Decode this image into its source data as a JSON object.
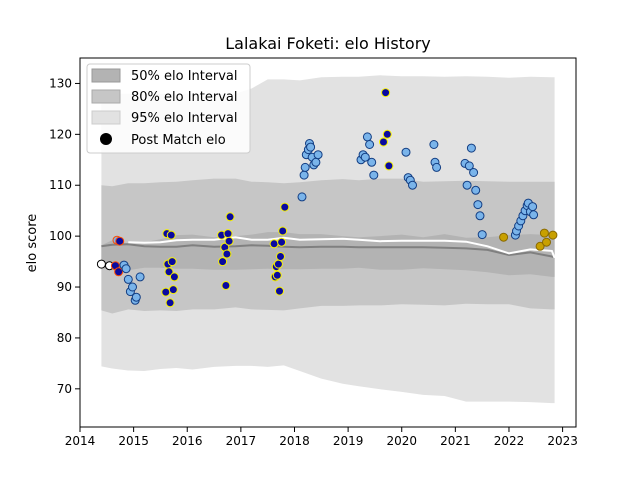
{
  "chart_data": {
    "type": "scatter",
    "title": "Lalakai Foketi: elo History",
    "ylabel": "elo score",
    "xlabel": "",
    "xlim": [
      2014.0,
      2023.25
    ],
    "ylim": [
      62.5,
      135
    ],
    "x_ticks": [
      2014,
      2015,
      2016,
      2017,
      2018,
      2019,
      2020,
      2021,
      2022,
      2023
    ],
    "y_ticks": [
      70,
      80,
      90,
      100,
      110,
      120,
      130
    ],
    "grid": false,
    "legend_position": "top-left",
    "legend": [
      {
        "label": "50% elo Interval",
        "kind": "band",
        "color": "#b3b3b3"
      },
      {
        "label": "80% elo Interval",
        "kind": "band",
        "color": "#c6c6c6"
      },
      {
        "label": "95% elo Interval",
        "kind": "band",
        "color": "#e2e2e2"
      },
      {
        "label": "Post Match elo",
        "kind": "marker",
        "color": "#000000"
      }
    ],
    "x": [
      2014.4,
      2014.6,
      2014.9,
      2015.2,
      2015.5,
      2015.8,
      2016.1,
      2016.5,
      2016.9,
      2017.2,
      2017.5,
      2017.8,
      2018.1,
      2018.5,
      2018.9,
      2019.2,
      2019.6,
      2020.0,
      2020.4,
      2020.8,
      2021.2,
      2021.6,
      2022.0,
      2022.4,
      2022.8,
      2022.85
    ],
    "median_elo": [
      98.0,
      98.3,
      98.4,
      98.0,
      97.9,
      97.9,
      98.2,
      97.9,
      98.0,
      98.2,
      98.1,
      97.9,
      97.8,
      97.9,
      97.9,
      97.8,
      97.8,
      97.8,
      97.8,
      97.7,
      97.6,
      97.3,
      96.3,
      96.8,
      96.0,
      95.8
    ],
    "post_match_trend": [
      null,
      null,
      98.8,
      98.7,
      98.8,
      99.2,
      99.3,
      99.3,
      99.8,
      99.3,
      99.3,
      99.7,
      99.3,
      99.4,
      99.5,
      99.3,
      99.0,
      99.1,
      99.1,
      99.1,
      98.9,
      98.0,
      96.6,
      97.4,
      97.1,
      95.7
    ],
    "band50_low": [
      93.8,
      93.3,
      93.3,
      93.8,
      93.8,
      93.6,
      93.6,
      93.4,
      93.4,
      93.5,
      93.6,
      93.5,
      93.5,
      93.6,
      93.6,
      93.8,
      93.4,
      93.4,
      93.7,
      93.5,
      93.3,
      92.9,
      92.3,
      92.5,
      92.0,
      92.0
    ],
    "band50_high": [
      98.2,
      99.2,
      98.6,
      98.8,
      99.4,
      100.2,
      100.3,
      99.8,
      100.0,
      100.3,
      100.8,
      100.8,
      100.4,
      100.4,
      100.0,
      99.8,
      100.0,
      100.3,
      99.8,
      100.4,
      99.7,
      99.8,
      100.2,
      100.4,
      100.2,
      100.2
    ],
    "band80_low": [
      85.4,
      84.8,
      85.6,
      85.3,
      85.4,
      85.3,
      85.6,
      85.6,
      86.0,
      85.6,
      85.5,
      85.4,
      85.8,
      86.3,
      86.3,
      86.4,
      86.4,
      86.6,
      86.5,
      86.4,
      86.7,
      86.6,
      86.6,
      85.8,
      85.6,
      85.6
    ],
    "band80_high": [
      110.0,
      109.8,
      110.4,
      110.4,
      110.6,
      110.7,
      111.0,
      111.3,
      111.3,
      110.7,
      110.6,
      110.4,
      110.6,
      111.0,
      111.2,
      111.0,
      111.3,
      111.3,
      110.7,
      110.8,
      110.9,
      110.8,
      110.7,
      110.7,
      110.7,
      110.7
    ],
    "band95_low": [
      74.4,
      74.0,
      73.6,
      73.5,
      73.9,
      74.1,
      73.8,
      74.3,
      74.5,
      74.5,
      74.3,
      74.6,
      73.5,
      72.0,
      71.0,
      70.5,
      69.9,
      69.4,
      68.8,
      68.6,
      67.5,
      67.5,
      67.5,
      67.4,
      67.2,
      67.2
    ],
    "band95_high": [
      128.0,
      128.0,
      128.0,
      128.0,
      128.0,
      128.0,
      128.0,
      128.0,
      128.0,
      129.0,
      130.8,
      130.8,
      130.6,
      131.2,
      131.3,
      131.3,
      131.6,
      131.4,
      131.4,
      131.3,
      131.4,
      131.3,
      131.1,
      131.3,
      131.2,
      131.2
    ],
    "points": [
      {
        "x": 2014.4,
        "y": 94.5,
        "fill": "#ffffff",
        "edge": "#000000"
      },
      {
        "x": 2014.55,
        "y": 94.2,
        "fill": "#ffffff",
        "edge": "#000000"
      },
      {
        "x": 2014.66,
        "y": 94.2,
        "fill": "#0a0aa0",
        "edge": "#ff4b00"
      },
      {
        "x": 2014.69,
        "y": 99.2,
        "fill": "#7ab4ea",
        "edge": "#ff4b00"
      },
      {
        "x": 2014.72,
        "y": 93.0,
        "fill": "#0a0aa0",
        "edge": "#ff4b00"
      },
      {
        "x": 2014.74,
        "y": 99.0,
        "fill": "#0a0aa0",
        "edge": "#ff4b00"
      },
      {
        "x": 2014.82,
        "y": 94.3,
        "fill": "#7ab4ea",
        "edge": "#123d82"
      },
      {
        "x": 2014.86,
        "y": 93.6,
        "fill": "#7ab4ea",
        "edge": "#123d82"
      },
      {
        "x": 2014.9,
        "y": 91.5,
        "fill": "#7ab4ea",
        "edge": "#123d82"
      },
      {
        "x": 2014.94,
        "y": 89.1,
        "fill": "#7ab4ea",
        "edge": "#123d82"
      },
      {
        "x": 2014.98,
        "y": 90.0,
        "fill": "#7ab4ea",
        "edge": "#123d82"
      },
      {
        "x": 2015.03,
        "y": 87.4,
        "fill": "#7ab4ea",
        "edge": "#123d82"
      },
      {
        "x": 2015.05,
        "y": 88.0,
        "fill": "#7ab4ea",
        "edge": "#123d82"
      },
      {
        "x": 2015.12,
        "y": 92.0,
        "fill": "#7ab4ea",
        "edge": "#123d82"
      },
      {
        "x": 2015.62,
        "y": 100.5,
        "fill": "#0a0aa0",
        "edge": "#f5f000"
      },
      {
        "x": 2015.64,
        "y": 94.5,
        "fill": "#0a0aa0",
        "edge": "#f5f000"
      },
      {
        "x": 2015.66,
        "y": 93.0,
        "fill": "#0a0aa0",
        "edge": "#f5f000"
      },
      {
        "x": 2015.6,
        "y": 89.0,
        "fill": "#0a0aa0",
        "edge": "#f5f000"
      },
      {
        "x": 2015.68,
        "y": 86.9,
        "fill": "#0a0aa0",
        "edge": "#f5f000"
      },
      {
        "x": 2015.7,
        "y": 100.2,
        "fill": "#0a0aa0",
        "edge": "#f5f000"
      },
      {
        "x": 2015.72,
        "y": 95.0,
        "fill": "#0a0aa0",
        "edge": "#f5f000"
      },
      {
        "x": 2015.74,
        "y": 89.5,
        "fill": "#0a0aa0",
        "edge": "#f5f000"
      },
      {
        "x": 2015.76,
        "y": 92.0,
        "fill": "#0a0aa0",
        "edge": "#f5f000"
      },
      {
        "x": 2016.64,
        "y": 100.2,
        "fill": "#0a0aa0",
        "edge": "#f5f000"
      },
      {
        "x": 2016.66,
        "y": 95.0,
        "fill": "#0a0aa0",
        "edge": "#f5f000"
      },
      {
        "x": 2016.7,
        "y": 97.8,
        "fill": "#0a0aa0",
        "edge": "#f5f000"
      },
      {
        "x": 2016.72,
        "y": 90.3,
        "fill": "#0a0aa0",
        "edge": "#f5f000"
      },
      {
        "x": 2016.74,
        "y": 96.5,
        "fill": "#0a0aa0",
        "edge": "#f5f000"
      },
      {
        "x": 2016.76,
        "y": 100.5,
        "fill": "#0a0aa0",
        "edge": "#f5f000"
      },
      {
        "x": 2016.78,
        "y": 99.0,
        "fill": "#0a0aa0",
        "edge": "#f5f000"
      },
      {
        "x": 2016.8,
        "y": 103.8,
        "fill": "#0a0aa0",
        "edge": "#f5f000"
      },
      {
        "x": 2017.62,
        "y": 98.5,
        "fill": "#0a0aa0",
        "edge": "#f5f000"
      },
      {
        "x": 2017.64,
        "y": 92.0,
        "fill": "#0a0aa0",
        "edge": "#f5f000"
      },
      {
        "x": 2017.66,
        "y": 94.0,
        "fill": "#0a0aa0",
        "edge": "#f5f000"
      },
      {
        "x": 2017.68,
        "y": 92.3,
        "fill": "#0a0aa0",
        "edge": "#f5f000"
      },
      {
        "x": 2017.7,
        "y": 94.5,
        "fill": "#0a0aa0",
        "edge": "#f5f000"
      },
      {
        "x": 2017.72,
        "y": 89.2,
        "fill": "#0a0aa0",
        "edge": "#f5f000"
      },
      {
        "x": 2017.74,
        "y": 96.0,
        "fill": "#0a0aa0",
        "edge": "#f5f000"
      },
      {
        "x": 2017.76,
        "y": 98.8,
        "fill": "#0a0aa0",
        "edge": "#f5f000"
      },
      {
        "x": 2017.78,
        "y": 101.0,
        "fill": "#0a0aa0",
        "edge": "#f5f000"
      },
      {
        "x": 2017.82,
        "y": 105.7,
        "fill": "#0a0aa0",
        "edge": "#f5f000"
      },
      {
        "x": 2018.14,
        "y": 107.7,
        "fill": "#7ab4ea",
        "edge": "#123d82"
      },
      {
        "x": 2018.18,
        "y": 112.0,
        "fill": "#7ab4ea",
        "edge": "#123d82"
      },
      {
        "x": 2018.2,
        "y": 113.5,
        "fill": "#7ab4ea",
        "edge": "#123d82"
      },
      {
        "x": 2018.22,
        "y": 116.0,
        "fill": "#7ab4ea",
        "edge": "#123d82"
      },
      {
        "x": 2018.26,
        "y": 117.0,
        "fill": "#7ab4ea",
        "edge": "#123d82"
      },
      {
        "x": 2018.28,
        "y": 118.2,
        "fill": "#7ab4ea",
        "edge": "#123d82"
      },
      {
        "x": 2018.3,
        "y": 117.5,
        "fill": "#7ab4ea",
        "edge": "#123d82"
      },
      {
        "x": 2018.33,
        "y": 115.5,
        "fill": "#7ab4ea",
        "edge": "#123d82"
      },
      {
        "x": 2018.36,
        "y": 114.0,
        "fill": "#7ab4ea",
        "edge": "#123d82"
      },
      {
        "x": 2018.4,
        "y": 114.5,
        "fill": "#7ab4ea",
        "edge": "#123d82"
      },
      {
        "x": 2018.44,
        "y": 116.0,
        "fill": "#7ab4ea",
        "edge": "#123d82"
      },
      {
        "x": 2019.24,
        "y": 115.0,
        "fill": "#7ab4ea",
        "edge": "#123d82"
      },
      {
        "x": 2019.28,
        "y": 116.0,
        "fill": "#7ab4ea",
        "edge": "#123d82"
      },
      {
        "x": 2019.32,
        "y": 115.5,
        "fill": "#7ab4ea",
        "edge": "#123d82"
      },
      {
        "x": 2019.36,
        "y": 119.5,
        "fill": "#7ab4ea",
        "edge": "#123d82"
      },
      {
        "x": 2019.4,
        "y": 118.0,
        "fill": "#7ab4ea",
        "edge": "#123d82"
      },
      {
        "x": 2019.44,
        "y": 114.5,
        "fill": "#7ab4ea",
        "edge": "#123d82"
      },
      {
        "x": 2019.48,
        "y": 112.0,
        "fill": "#7ab4ea",
        "edge": "#123d82"
      },
      {
        "x": 2019.66,
        "y": 118.5,
        "fill": "#0a0aa0",
        "edge": "#f5f000"
      },
      {
        "x": 2019.7,
        "y": 128.2,
        "fill": "#0a0aa0",
        "edge": "#f5f000"
      },
      {
        "x": 2019.73,
        "y": 120.0,
        "fill": "#0a0aa0",
        "edge": "#f5f000"
      },
      {
        "x": 2019.76,
        "y": 113.8,
        "fill": "#0a0aa0",
        "edge": "#f5f000"
      },
      {
        "x": 2020.08,
        "y": 116.5,
        "fill": "#7ab4ea",
        "edge": "#123d82"
      },
      {
        "x": 2020.12,
        "y": 111.5,
        "fill": "#7ab4ea",
        "edge": "#123d82"
      },
      {
        "x": 2020.16,
        "y": 111.0,
        "fill": "#7ab4ea",
        "edge": "#123d82"
      },
      {
        "x": 2020.2,
        "y": 110.0,
        "fill": "#7ab4ea",
        "edge": "#123d82"
      },
      {
        "x": 2020.6,
        "y": 118.0,
        "fill": "#7ab4ea",
        "edge": "#123d82"
      },
      {
        "x": 2020.62,
        "y": 114.5,
        "fill": "#7ab4ea",
        "edge": "#123d82"
      },
      {
        "x": 2020.65,
        "y": 113.5,
        "fill": "#7ab4ea",
        "edge": "#123d82"
      },
      {
        "x": 2021.18,
        "y": 114.3,
        "fill": "#7ab4ea",
        "edge": "#123d82"
      },
      {
        "x": 2021.22,
        "y": 110.0,
        "fill": "#7ab4ea",
        "edge": "#123d82"
      },
      {
        "x": 2021.26,
        "y": 113.8,
        "fill": "#7ab4ea",
        "edge": "#123d82"
      },
      {
        "x": 2021.3,
        "y": 117.3,
        "fill": "#7ab4ea",
        "edge": "#123d82"
      },
      {
        "x": 2021.34,
        "y": 112.5,
        "fill": "#7ab4ea",
        "edge": "#123d82"
      },
      {
        "x": 2021.38,
        "y": 109.0,
        "fill": "#7ab4ea",
        "edge": "#123d82"
      },
      {
        "x": 2021.42,
        "y": 106.2,
        "fill": "#7ab4ea",
        "edge": "#123d82"
      },
      {
        "x": 2021.46,
        "y": 104.0,
        "fill": "#7ab4ea",
        "edge": "#123d82"
      },
      {
        "x": 2021.5,
        "y": 100.3,
        "fill": "#7ab4ea",
        "edge": "#123d82"
      },
      {
        "x": 2021.9,
        "y": 99.8,
        "fill": "#c8a000",
        "edge": "#8a6a00"
      },
      {
        "x": 2022.12,
        "y": 100.2,
        "fill": "#7ab4ea",
        "edge": "#123d82"
      },
      {
        "x": 2022.14,
        "y": 101.0,
        "fill": "#7ab4ea",
        "edge": "#123d82"
      },
      {
        "x": 2022.18,
        "y": 102.0,
        "fill": "#7ab4ea",
        "edge": "#123d82"
      },
      {
        "x": 2022.22,
        "y": 103.0,
        "fill": "#7ab4ea",
        "edge": "#123d82"
      },
      {
        "x": 2022.26,
        "y": 104.0,
        "fill": "#7ab4ea",
        "edge": "#123d82"
      },
      {
        "x": 2022.3,
        "y": 105.0,
        "fill": "#7ab4ea",
        "edge": "#123d82"
      },
      {
        "x": 2022.34,
        "y": 106.0,
        "fill": "#7ab4ea",
        "edge": "#123d82"
      },
      {
        "x": 2022.36,
        "y": 106.5,
        "fill": "#7ab4ea",
        "edge": "#123d82"
      },
      {
        "x": 2022.4,
        "y": 104.8,
        "fill": "#7ab4ea",
        "edge": "#123d82"
      },
      {
        "x": 2022.44,
        "y": 105.8,
        "fill": "#7ab4ea",
        "edge": "#123d82"
      },
      {
        "x": 2022.46,
        "y": 104.2,
        "fill": "#7ab4ea",
        "edge": "#123d82"
      },
      {
        "x": 2022.58,
        "y": 98.0,
        "fill": "#c8a000",
        "edge": "#8a6a00"
      },
      {
        "x": 2022.66,
        "y": 100.6,
        "fill": "#c8a000",
        "edge": "#8a6a00"
      },
      {
        "x": 2022.7,
        "y": 98.8,
        "fill": "#c8a000",
        "edge": "#8a6a00"
      },
      {
        "x": 2022.82,
        "y": 100.2,
        "fill": "#c8a000",
        "edge": "#8a6a00"
      }
    ]
  }
}
